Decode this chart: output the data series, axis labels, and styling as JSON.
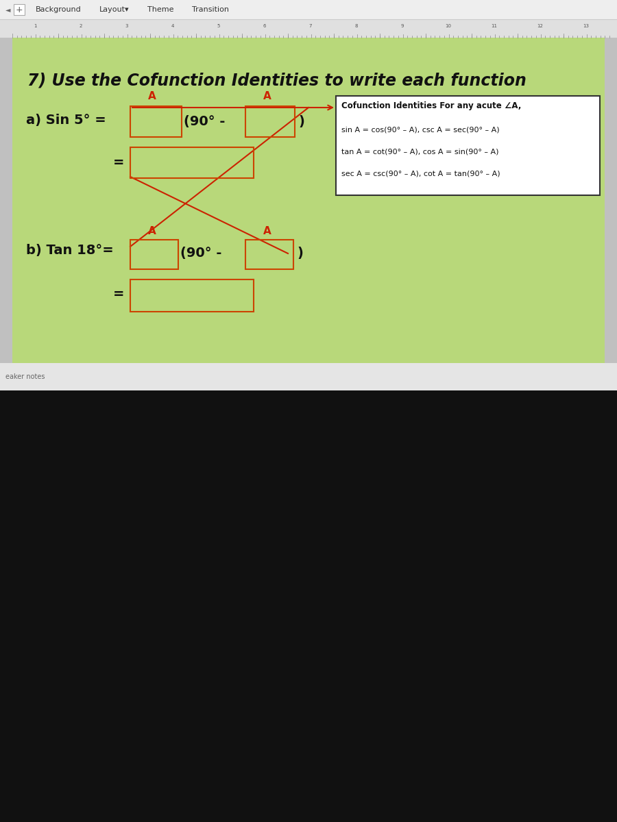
{
  "bg_color": "#c0c0c0",
  "toolbar_bg": "#eeeeee",
  "toolbar_text": [
    "Background",
    "Layout▾",
    "Theme",
    "Transition"
  ],
  "ruler_bg": "#e0e0e0",
  "slide_bg": "#b8d87a",
  "below_slide_bg": "#111111",
  "speaker_notes_text": "eaker notes",
  "title_text": "7) Use the Cofunction Identities to write each function",
  "part_a_label": "a) Sin 5° =",
  "part_b_label": "b) Tan 18°=",
  "red_color": "#cc2200",
  "box_edge_color": "#cc4400",
  "text_color": "#111111",
  "box_fill_color": "none",
  "cofunction_title": "Cofunction Identities For any acute ∠A,",
  "cofunction_lines": [
    "sin A = cos(90° – A), csc A = sec(90° – A)",
    "tan A = cot(90° – A), cos A = sin(90° – A)",
    "sec A = csc(90° – A), cot A = tan(90° – A)"
  ]
}
